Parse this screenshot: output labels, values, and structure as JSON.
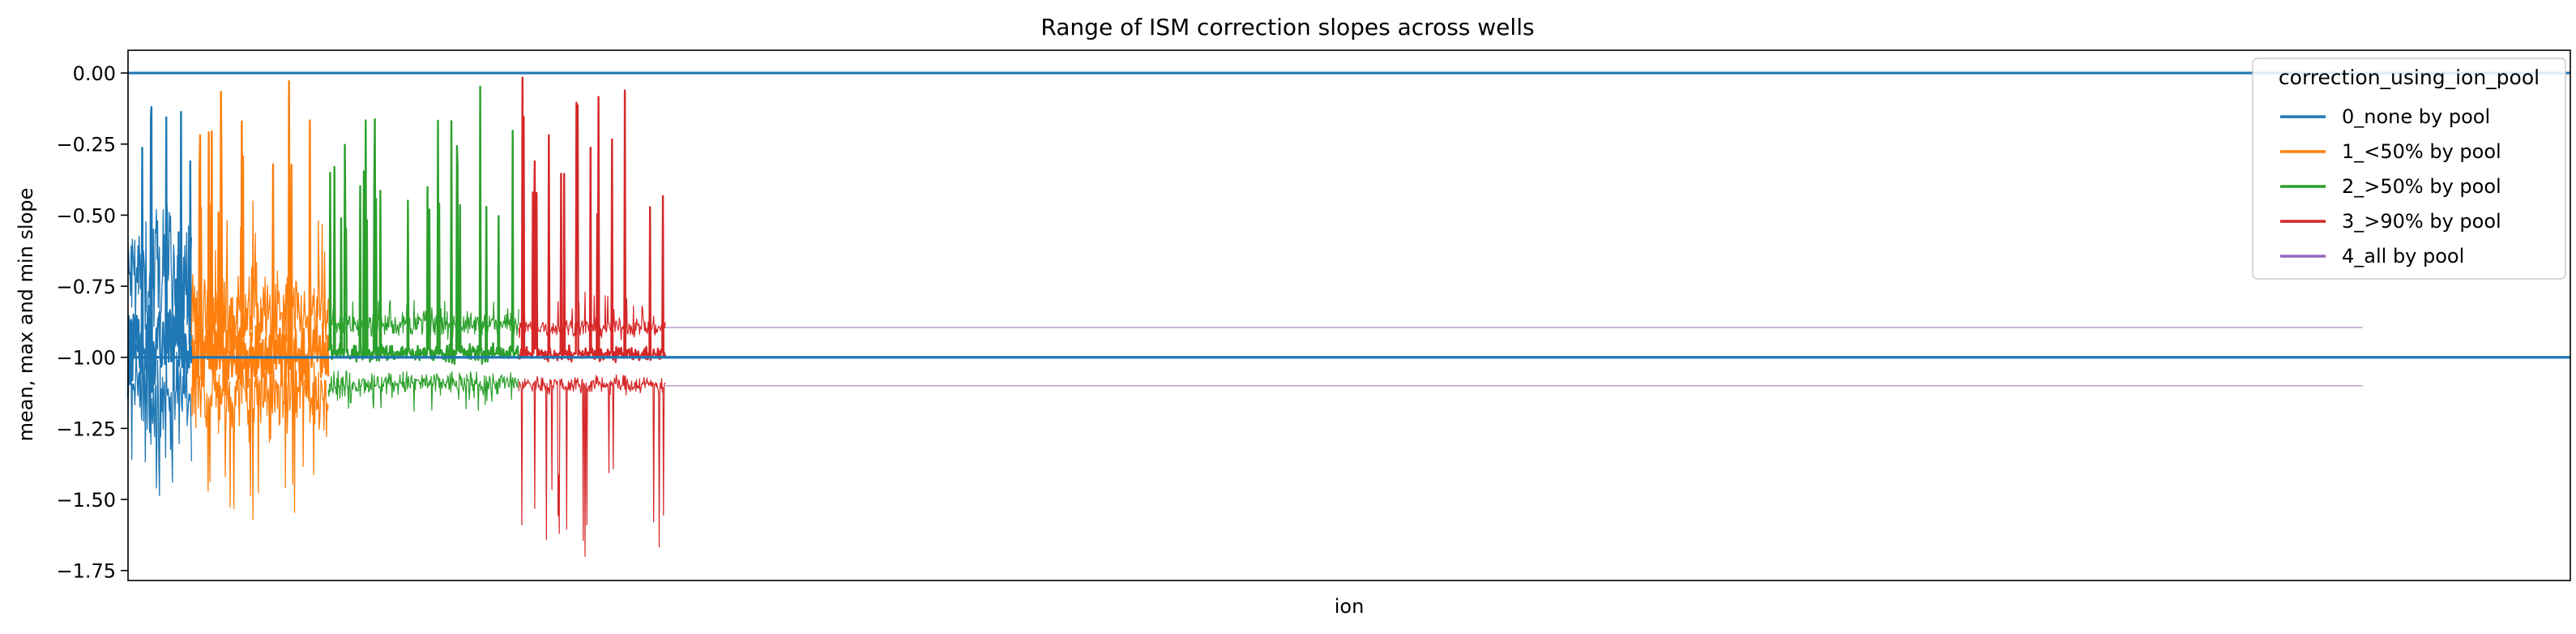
{
  "chart_data": {
    "type": "line",
    "title": "Range of ISM correction slopes across wells",
    "xlabel": "ion",
    "ylabel": "mean, max and min slope",
    "x_ticks_shown": false,
    "x_range": [
      0,
      1000
    ],
    "ylim": [
      -1.785,
      0.08
    ],
    "yticks": [
      0.0,
      -0.25,
      -0.5,
      -0.75,
      -1.0,
      -1.25,
      -1.5,
      -1.75
    ],
    "ytick_labels": [
      "0.00",
      "−0.25",
      "−0.50",
      "−0.75",
      "−1.00",
      "−1.25",
      "−1.50",
      "−1.75"
    ],
    "grid": false,
    "legend": {
      "title": "correction_using_ion_pool",
      "placement": "top-right"
    },
    "reference_lines": [
      {
        "y": 0.0,
        "color": "#1f77b4"
      },
      {
        "y": -1.0,
        "color": "#1f77b4"
      }
    ],
    "series": [
      {
        "name": "0_none by pool",
        "color": "#1f77b4",
        "x_start": 0,
        "x_end": 26,
        "mean_center": -0.95,
        "max_center": -0.72,
        "min_center": -1.13,
        "noise": 0.14,
        "max_extreme": -0.48,
        "min_extreme": -1.46
      },
      {
        "name": "1_<50% by pool",
        "color": "#ff7f0e",
        "x_start": 26,
        "x_end": 82,
        "mean_center": -0.99,
        "max_center": -0.86,
        "min_center": -1.12,
        "noise": 0.1,
        "max_extreme": -0.45,
        "min_extreme": -1.57
      },
      {
        "name": "2_>50% by pool",
        "color": "#2ca02c",
        "x_start": 82,
        "x_end": 160,
        "mean_center": -0.985,
        "max_center": -0.885,
        "min_center": -1.09,
        "noise": 0.025,
        "max_extreme": -0.8,
        "min_extreme": -1.19
      },
      {
        "name": "3_>90% by pool",
        "color": "#d62728",
        "x_start": 160,
        "x_end": 220,
        "mean_center": -0.99,
        "max_center": -0.895,
        "min_center": -1.095,
        "noise": 0.02,
        "max_extreme": -0.77,
        "min_extreme": -1.7
      },
      {
        "name": "4_all by pool",
        "color": "#9467bd",
        "x_start": 220,
        "x_end": 915,
        "mean_center": -1.0,
        "max_center": -0.895,
        "min_center": -1.1,
        "noise": 0.0,
        "max_extreme": -0.895,
        "min_extreme": -1.1
      }
    ]
  }
}
